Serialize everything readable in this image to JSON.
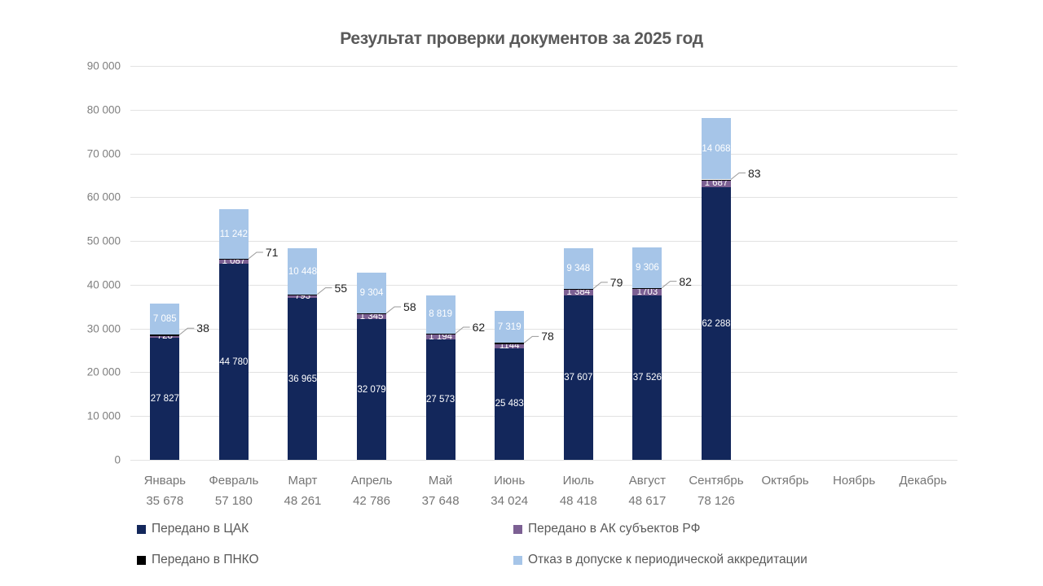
{
  "title": "Результат проверки документов за 2025 год",
  "colors": {
    "navy": "#13275B",
    "purple": "#7C6093",
    "black": "#000000",
    "light_blue": "#A6C5E8",
    "grid": "#E2E2E2",
    "axis_text": "#7F7F7F",
    "title_text": "#595959",
    "callout_text": "#1F1F1F",
    "leader_line": "#999999",
    "background": "#FFFFFF"
  },
  "chart_data": {
    "type": "bar",
    "stacked": true,
    "title": "Результат проверки документов за 2025 год",
    "legend_position": "bottom",
    "gridlines": "horizontal",
    "x_categories": [
      "Январь",
      "Февраль",
      "Март",
      "Апрель",
      "Май",
      "Июнь",
      "Июль",
      "Август",
      "Сентябрь",
      "Октябрь",
      "Ноябрь",
      "Декабрь"
    ],
    "category_totals": [
      35678,
      57180,
      48261,
      42786,
      37648,
      34024,
      48418,
      48617,
      78126,
      null,
      null,
      null
    ],
    "category_totals_display": [
      "35 678",
      "57 180",
      "48 261",
      "42 786",
      "37 648",
      "34 024",
      "48 418",
      "48 617",
      "78 126",
      "",
      "",
      ""
    ],
    "y_axis": {
      "min": 0,
      "max": 90000,
      "step": 10000,
      "tick_labels": [
        "0",
        "10 000",
        "20 000",
        "30 000",
        "40 000",
        "50 000",
        "60 000",
        "70 000",
        "80 000",
        "90 000"
      ]
    },
    "series": [
      {
        "id": "cak",
        "name": "Передано в ЦАК",
        "color": "#13275B",
        "callout": false,
        "values": [
          27827,
          44780,
          36965,
          32079,
          27573,
          25483,
          37607,
          37526,
          62288,
          null,
          null,
          null
        ],
        "labels": [
          "27 827",
          "44 780",
          "36 965",
          "32 079",
          "27 573",
          "25 483",
          "37 607",
          "37 526",
          "62 288",
          "",
          "",
          ""
        ]
      },
      {
        "id": "ak-subjects",
        "name": "Передано в АК субъектов РФ",
        "color": "#7C6093",
        "callout": false,
        "values": [
          728,
          1087,
          793,
          1345,
          1194,
          1144,
          1384,
          1703,
          1687,
          null,
          null,
          null
        ],
        "labels": [
          "728",
          "1 087",
          "793",
          "1 345",
          "1 194",
          "1144",
          "1 384",
          "1703",
          "1 687",
          "",
          "",
          ""
        ]
      },
      {
        "id": "pnko",
        "name": "Передано в ПНКО",
        "color": "#000000",
        "callout": true,
        "values": [
          38,
          71,
          55,
          58,
          62,
          78,
          79,
          82,
          83,
          null,
          null,
          null
        ],
        "labels": [
          "38",
          "71",
          "55",
          "58",
          "62",
          "78",
          "79",
          "82",
          "83",
          "",
          "",
          ""
        ]
      },
      {
        "id": "otkaz",
        "name": "Отказ в допуске к периодической  аккредитации",
        "color": "#A6C5E8",
        "callout": false,
        "values": [
          7085,
          11242,
          10448,
          9304,
          8819,
          7319,
          9348,
          9306,
          14068,
          null,
          null,
          null
        ],
        "labels": [
          "7 085",
          "11 242",
          "10 448",
          "9 304",
          "8 819",
          "7 319",
          "9 348",
          "9 306",
          "14 068",
          "",
          "",
          ""
        ]
      }
    ]
  }
}
